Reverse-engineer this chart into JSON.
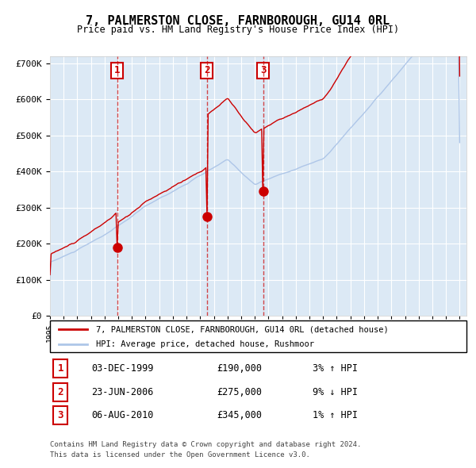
{
  "title": "7, PALMERSTON CLOSE, FARNBOROUGH, GU14 0RL",
  "subtitle": "Price paid vs. HM Land Registry's House Price Index (HPI)",
  "legend_line1": "7, PALMERSTON CLOSE, FARNBOROUGH, GU14 0RL (detached house)",
  "legend_line2": "HPI: Average price, detached house, Rushmoor",
  "sale_labels": [
    "1",
    "2",
    "3"
  ],
  "sale_dates": [
    "03-DEC-1999",
    "23-JUN-2006",
    "06-AUG-2010"
  ],
  "sale_prices": [
    190000,
    275000,
    345000
  ],
  "sale_pct": [
    "3%",
    "9%",
    "1%"
  ],
  "sale_dir": [
    "↑",
    "↓",
    "↑"
  ],
  "footnote1": "Contains HM Land Registry data © Crown copyright and database right 2024.",
  "footnote2": "This data is licensed under the Open Government Licence v3.0.",
  "hpi_color": "#aec6e8",
  "price_color": "#cc0000",
  "bg_color": "#dce9f5",
  "grid_color": "#ffffff",
  "ylim": [
    0,
    720000
  ],
  "yticks": [
    0,
    100000,
    200000,
    300000,
    400000,
    500000,
    600000,
    700000
  ],
  "ytick_labels": [
    "£0",
    "£100K",
    "£200K",
    "£300K",
    "£400K",
    "£500K",
    "£600K",
    "£700K"
  ],
  "sale_t": [
    4.92,
    11.5,
    15.6
  ],
  "start_year": 1995,
  "end_year": 2025
}
